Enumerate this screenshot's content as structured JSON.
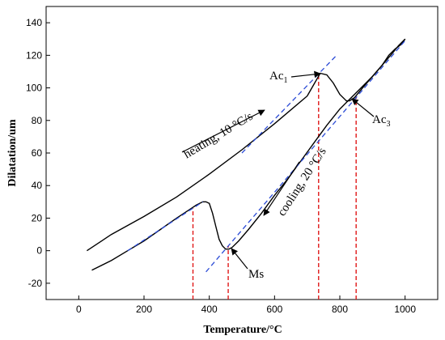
{
  "chart_data": {
    "type": "line",
    "title": "",
    "xlabel": "Temperature/°C",
    "ylabel": "Dilatation/um",
    "xlim": [
      -100,
      1100
    ],
    "ylim": [
      -30,
      150
    ],
    "xticks": [
      0,
      200,
      400,
      600,
      800,
      1000
    ],
    "yticks": [
      -20,
      0,
      20,
      40,
      60,
      80,
      100,
      120,
      140
    ],
    "grid": false,
    "series": [
      {
        "name": "",
        "style": "solid",
        "color": "#000000",
        "x": [
          25,
          100,
          200,
          300,
          400,
          500,
          600,
          700,
          740,
          760,
          780,
          800,
          820,
          830,
          845,
          870,
          900,
          930,
          950,
          970,
          990,
          1000
        ],
        "y": [
          0,
          10,
          21,
          33,
          47,
          62,
          78,
          95,
          109,
          108,
          103,
          96,
          92,
          92,
          94,
          100,
          107,
          114,
          120,
          124,
          127,
          130
        ]
      },
      {
        "name": "",
        "style": "solid",
        "color": "#000000",
        "x": [
          1000,
          980,
          960,
          930,
          900,
          860,
          830,
          800,
          760,
          720,
          680,
          640,
          600,
          560,
          520,
          490,
          470,
          460,
          450,
          440,
          430,
          420,
          410,
          400,
          390,
          380,
          360,
          330,
          300,
          250,
          200,
          150,
          100,
          40
        ],
        "y": [
          130,
          126,
          121,
          114,
          107,
          99,
          93,
          87,
          77,
          66,
          55,
          44,
          34,
          23,
          13,
          6,
          2,
          1,
          1,
          3,
          7,
          15,
          23,
          29,
          30,
          30,
          28,
          24,
          20,
          13,
          6,
          0,
          -6,
          -12
        ]
      },
      {
        "name": "",
        "style": "dashed",
        "color": "#2b4bd6",
        "x": [
          150,
          380
        ],
        "y": [
          0,
          30
        ]
      },
      {
        "name": "",
        "style": "dashed",
        "color": "#2b4bd6",
        "x": [
          390,
          1000
        ],
        "y": [
          -13,
          129
        ]
      },
      {
        "name": "",
        "style": "dashed",
        "color": "#2b4bd6",
        "x": [
          500,
          790
        ],
        "y": [
          60,
          120
        ]
      }
    ],
    "vertical_markers": {
      "color": "#e01818",
      "x": [
        350,
        458,
        735,
        850
      ],
      "y_bottom": -30,
      "y_top": [
        26,
        3,
        109,
        94
      ]
    },
    "annotations": {
      "heating": "heating, 10 °C/s",
      "cooling": "cooling, 20 °C/s",
      "ac1_main": "Ac",
      "ac1_sub": "1",
      "ac3_main": "Ac",
      "ac3_sub": "3",
      "ms": "Ms"
    }
  }
}
